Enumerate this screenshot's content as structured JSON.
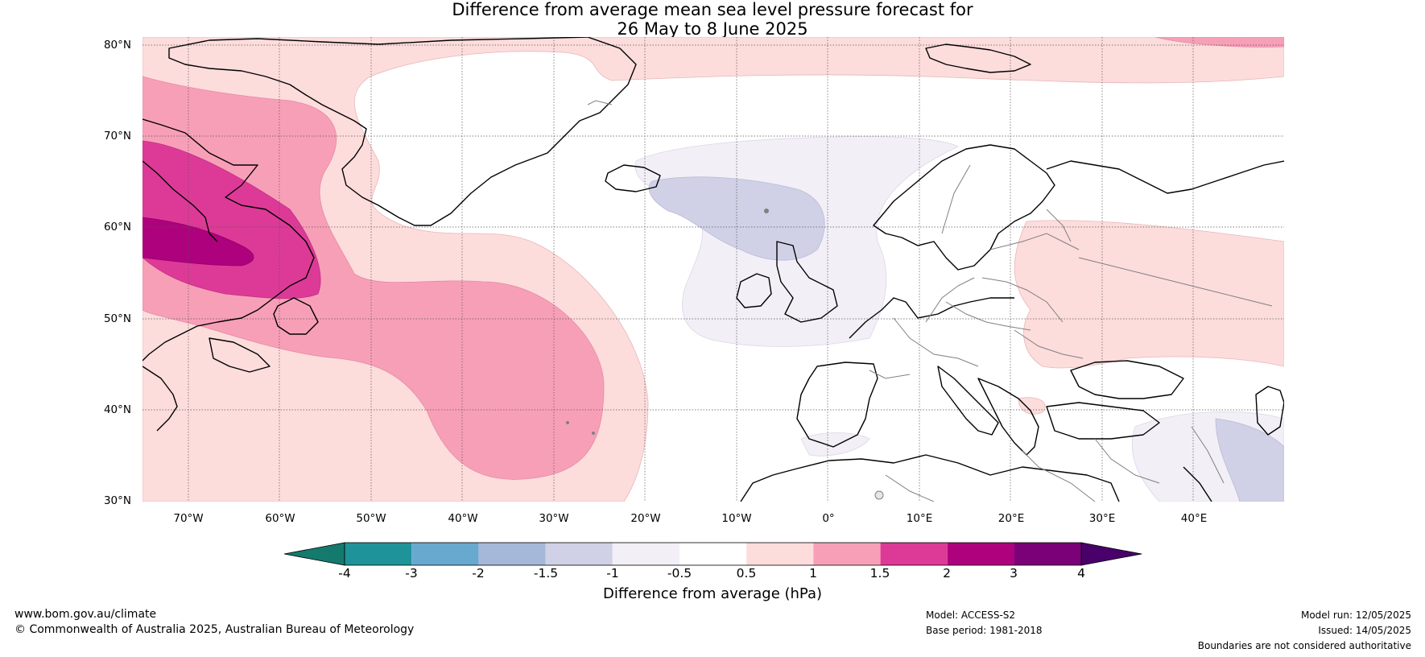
{
  "title_line1": "Difference from average mean sea level pressure forecast for",
  "title_line2": "26 May to 8 June 2025",
  "lat_ticks": [
    "80°N",
    "70°N",
    "60°N",
    "50°N",
    "40°N",
    "30°N"
  ],
  "lon_ticks": [
    "70°W",
    "60°W",
    "50°W",
    "40°W",
    "30°W",
    "20°W",
    "10°W",
    "0°",
    "10°E",
    "20°E",
    "30°E",
    "40°E"
  ],
  "colorbar": {
    "title": "Difference from average (hPa)",
    "labels": [
      "-4",
      "-3",
      "-2",
      "-1.5",
      "-1",
      "-0.5",
      "0.5",
      "1",
      "1.5",
      "2",
      "3",
      "4"
    ],
    "colors": [
      "#147a6e",
      "#1e9399",
      "#67a9cf",
      "#a6b8d8",
      "#d0d1e6",
      "#f2eff6",
      "#ffffff",
      "#fddcdc",
      "#f89fb8",
      "#dd3a97",
      "#ae017e",
      "#7a0177",
      "#49006a"
    ]
  },
  "footer": {
    "website": "www.bom.gov.au/climate",
    "copyright": "© Commonwealth of Australia 2025, Australian Bureau of Meteorology",
    "model": "Model: ACCESS-S2",
    "base_period": "Base period: 1981-2018",
    "model_run": "Model run: 12/05/2025",
    "issued": "Issued: 14/05/2025",
    "disclaimer": "Boundaries are not considered authoritative"
  }
}
